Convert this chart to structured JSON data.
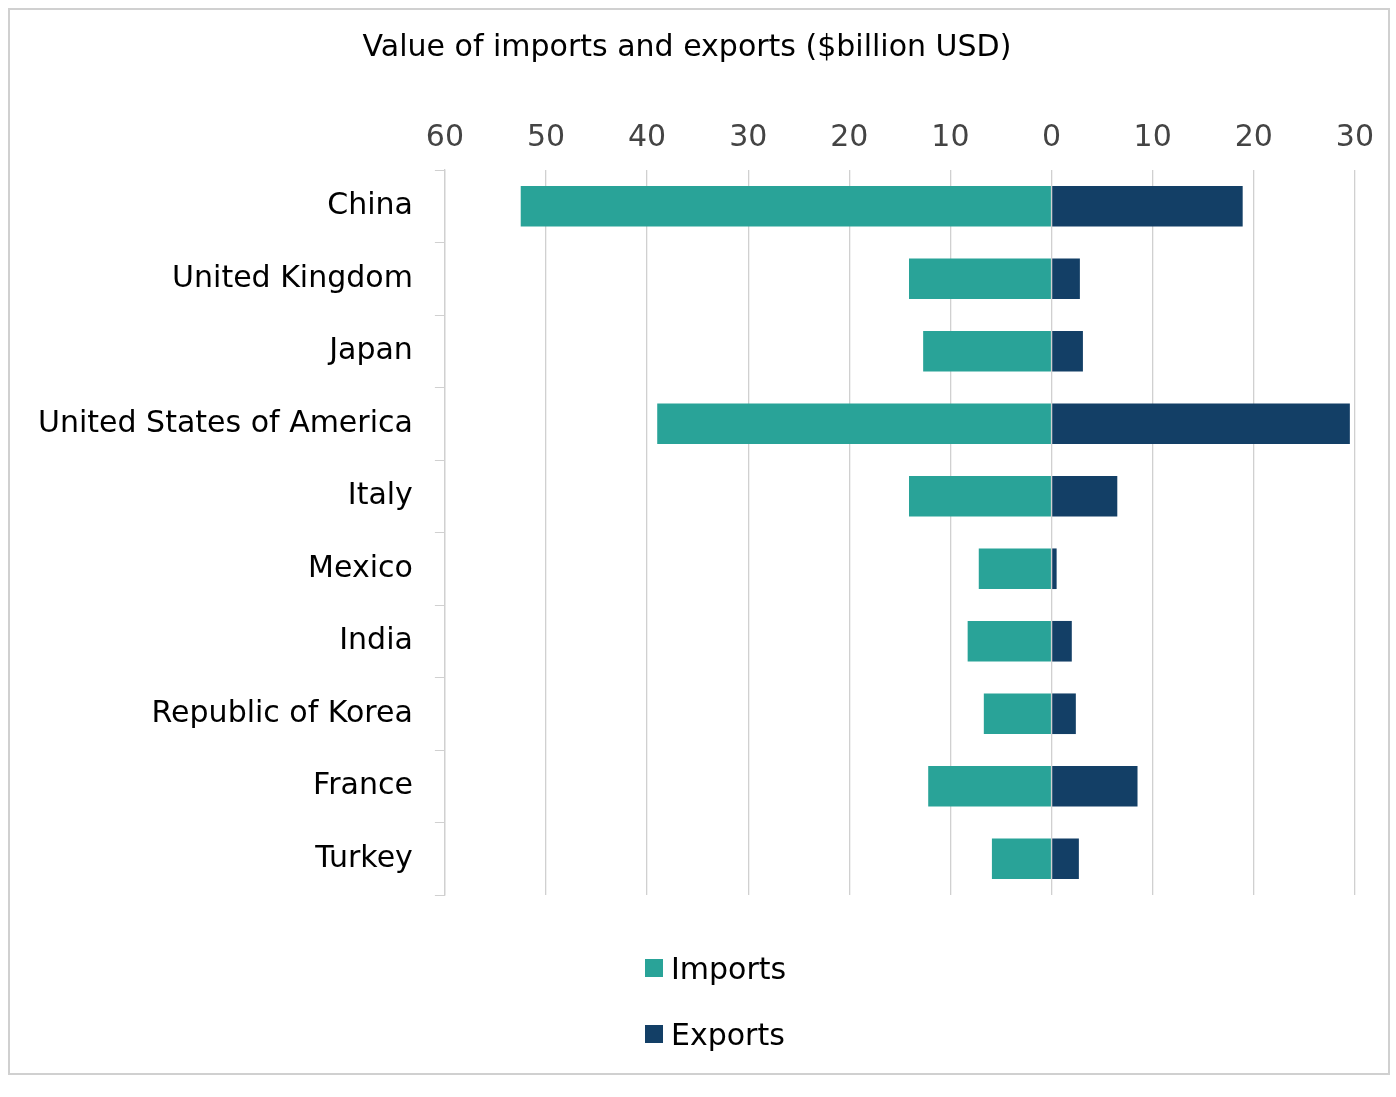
{
  "chart_data": {
    "type": "bar",
    "orientation": "horizontal",
    "stacked": true,
    "title": "Value of imports and exports ($billion USD)",
    "categories": [
      "China",
      "United Kingdom",
      "Japan",
      "United States of America",
      "Italy",
      "Mexico",
      "India",
      "Republic of Korea",
      "France",
      "Turkey"
    ],
    "series": [
      {
        "name": "Imports",
        "color": "#29a398",
        "values": [
          -52.5,
          -14.1,
          -12.7,
          -39.0,
          -14.1,
          -7.2,
          -8.3,
          -6.7,
          -12.2,
          -5.9
        ]
      },
      {
        "name": "Exports",
        "color": "#133f66",
        "values": [
          18.9,
          2.8,
          3.1,
          29.5,
          6.5,
          0.5,
          2.0,
          2.4,
          8.5,
          2.7
        ]
      }
    ],
    "xlim": [
      -60,
      30
    ],
    "xticks": [
      {
        "value": -60,
        "label": "60"
      },
      {
        "value": -50,
        "label": "50"
      },
      {
        "value": -40,
        "label": "40"
      },
      {
        "value": -30,
        "label": "30"
      },
      {
        "value": -20,
        "label": "20"
      },
      {
        "value": -10,
        "label": "10"
      },
      0,
      10,
      20,
      30
    ],
    "grid": "x",
    "legend": "bottom"
  }
}
